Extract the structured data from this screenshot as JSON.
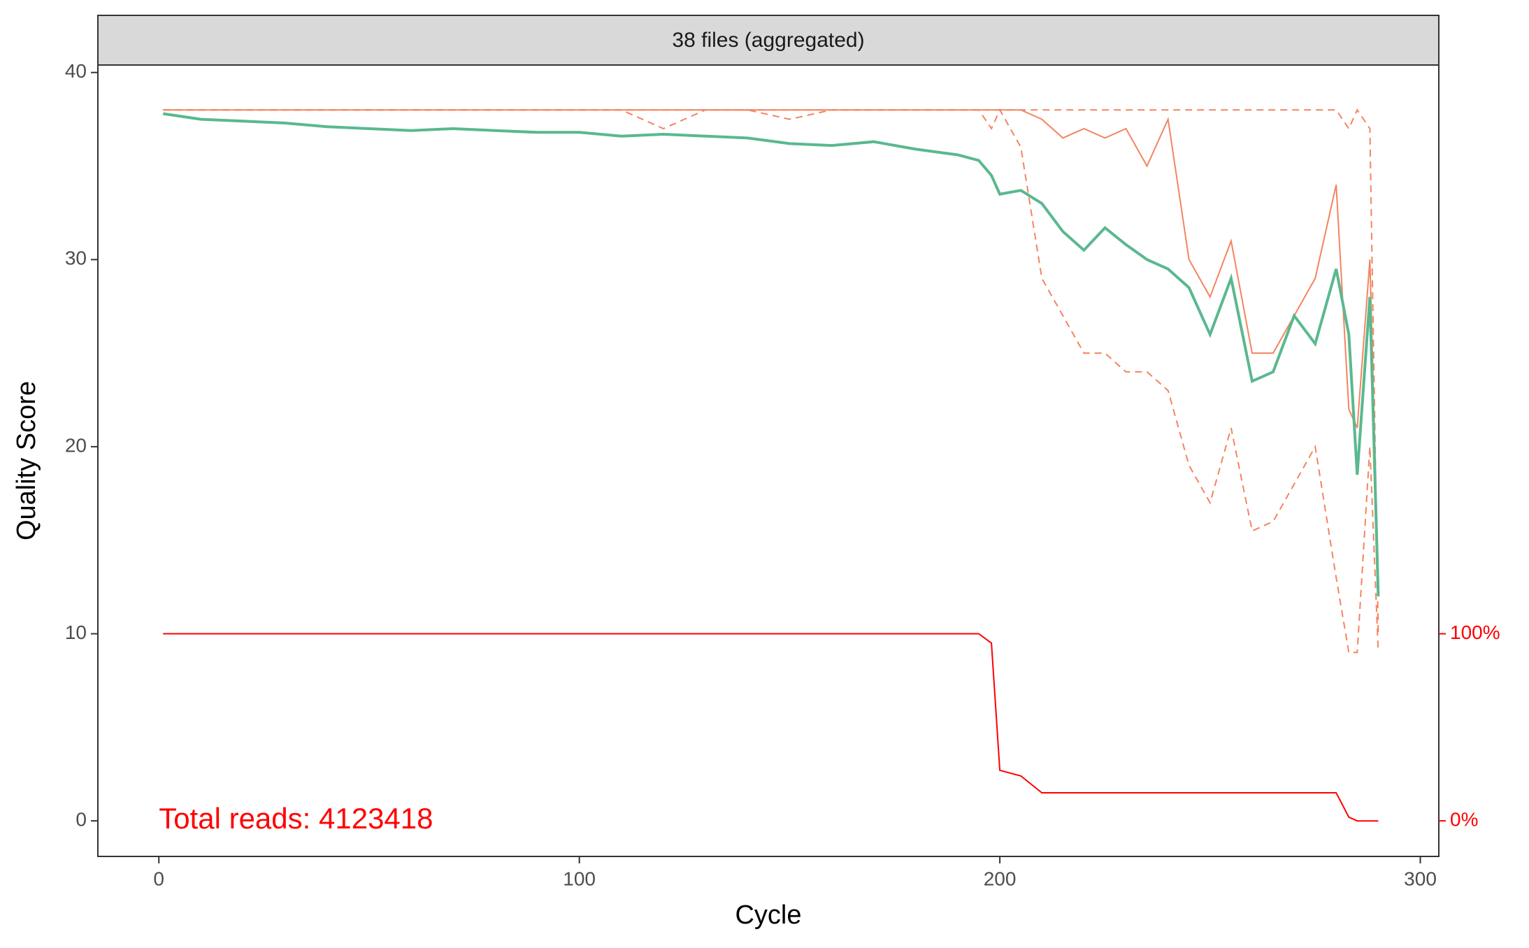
{
  "chart_data": {
    "type": "line",
    "strip_title": "38 files (aggregated)",
    "xlabel": "Cycle",
    "ylabel": "Quality Score",
    "annotation": "Total reads: 4123418",
    "annotation_color": "#ff0000",
    "x": [
      1,
      10,
      20,
      30,
      40,
      50,
      60,
      70,
      80,
      90,
      100,
      110,
      120,
      130,
      140,
      150,
      160,
      170,
      180,
      190,
      195,
      198,
      200,
      205,
      210,
      215,
      220,
      225,
      230,
      235,
      240,
      245,
      250,
      255,
      260,
      265,
      270,
      275,
      280,
      283,
      285,
      288,
      290
    ],
    "xlim": [
      -14.5,
      304.4
    ],
    "xticks": [
      0,
      100,
      200,
      300
    ],
    "ylim": [
      -1.9,
      40.4
    ],
    "yticks": [
      0,
      10,
      20,
      30,
      40
    ],
    "y2lim": [
      -19,
      404
    ],
    "y2ticks": [
      {
        "value": 0,
        "label": "0%"
      },
      {
        "value": 100,
        "label": "100%"
      }
    ],
    "y2color": "#ff0000",
    "series": [
      {
        "color": "#f4845f",
        "linestyle": "dashed",
        "values": [
          38,
          38,
          38,
          38,
          38,
          38,
          38,
          38,
          38,
          38,
          38,
          38,
          37,
          38,
          38,
          37.5,
          38,
          38,
          38,
          38,
          38,
          37,
          38,
          36,
          29,
          27,
          25,
          25,
          24,
          24,
          23,
          19,
          17,
          21,
          15.5,
          16,
          18,
          20,
          13,
          9,
          9,
          20,
          9
        ]
      },
      {
        "color": "#f4845f",
        "linestyle": "dashed",
        "values": [
          38,
          38,
          38,
          38,
          38,
          38,
          38,
          38,
          38,
          38,
          38,
          38,
          38,
          38,
          38,
          38,
          38,
          38,
          38,
          38,
          38,
          38,
          38,
          38,
          38,
          38,
          38,
          38,
          38,
          38,
          38,
          38,
          38,
          38,
          38,
          38,
          38,
          38,
          38,
          37,
          38,
          37,
          10
        ]
      },
      {
        "color": "#f4845f",
        "linestyle": "solid",
        "values": [
          38,
          38,
          38,
          38,
          38,
          38,
          38,
          38,
          38,
          38,
          38,
          38,
          38,
          38,
          38,
          38,
          38,
          38,
          38,
          38,
          38,
          38,
          38,
          38,
          37.5,
          36.5,
          37,
          36.5,
          37,
          35,
          37.5,
          30,
          28,
          31,
          25,
          25,
          27,
          29,
          34,
          22,
          21,
          30,
          13
        ]
      },
      {
        "color": "#5ab88f",
        "linestyle": "solid",
        "values": [
          37.8,
          37.5,
          37.4,
          37.3,
          37.1,
          37,
          36.9,
          37,
          36.9,
          36.8,
          36.8,
          36.6,
          36.7,
          36.6,
          36.5,
          36.2,
          36.1,
          36.3,
          35.9,
          35.6,
          35.3,
          34.5,
          33.5,
          33.7,
          33,
          31.5,
          30.5,
          31.7,
          30.8,
          30,
          29.5,
          28.5,
          26,
          29,
          23.5,
          24,
          27,
          25.5,
          29.5,
          26,
          18.5,
          28,
          12
        ]
      },
      {
        "color": "#ff0000",
        "linestyle": "solid",
        "axis": "y2",
        "values": [
          100,
          100,
          100,
          100,
          100,
          100,
          100,
          100,
          100,
          100,
          100,
          100,
          100,
          100,
          100,
          100,
          100,
          100,
          100,
          100,
          100,
          95,
          27,
          24,
          15,
          15,
          15,
          15,
          15,
          15,
          15,
          15,
          15,
          15,
          15,
          15,
          15,
          15,
          15,
          2,
          0,
          0,
          0
        ]
      }
    ]
  }
}
